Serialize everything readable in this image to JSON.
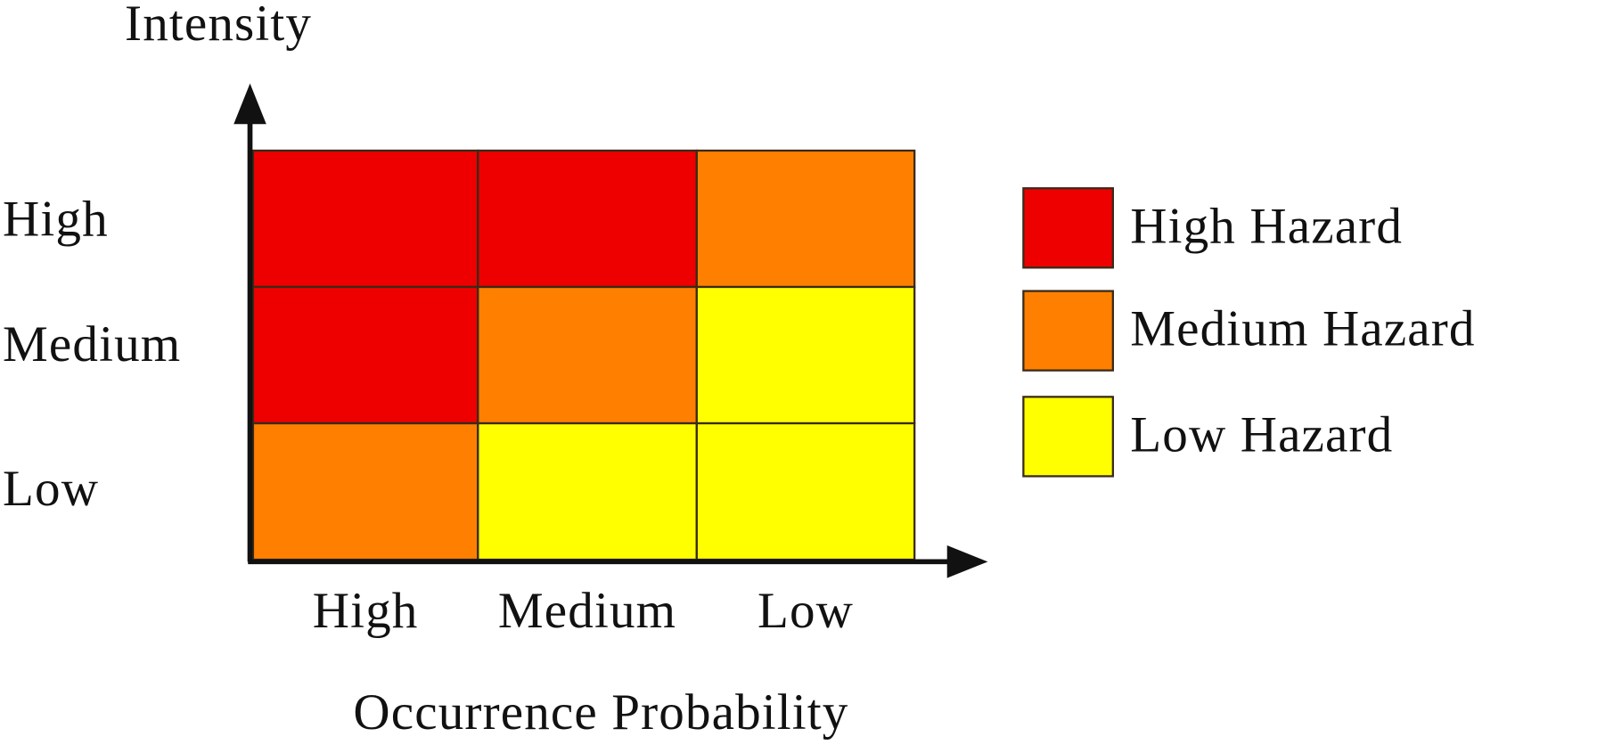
{
  "axes": {
    "y_label": "Intensity",
    "x_label": "Occurrence Probability"
  },
  "rows": [
    "High",
    "Medium",
    "Low"
  ],
  "columns": [
    "High",
    "Medium",
    "Low"
  ],
  "cells": [
    [
      "#ee0000",
      "#ee0000",
      "#ff8000"
    ],
    [
      "#ee0000",
      "#ff8000",
      "#ffff00"
    ],
    [
      "#ff8000",
      "#ffff00",
      "#ffff00"
    ]
  ],
  "legend": [
    {
      "label": "High Hazard",
      "color": "#ee0000"
    },
    {
      "label": "Medium Hazard",
      "color": "#ff8000"
    },
    {
      "label": "Low Hazard",
      "color": "#ffff00"
    }
  ]
}
